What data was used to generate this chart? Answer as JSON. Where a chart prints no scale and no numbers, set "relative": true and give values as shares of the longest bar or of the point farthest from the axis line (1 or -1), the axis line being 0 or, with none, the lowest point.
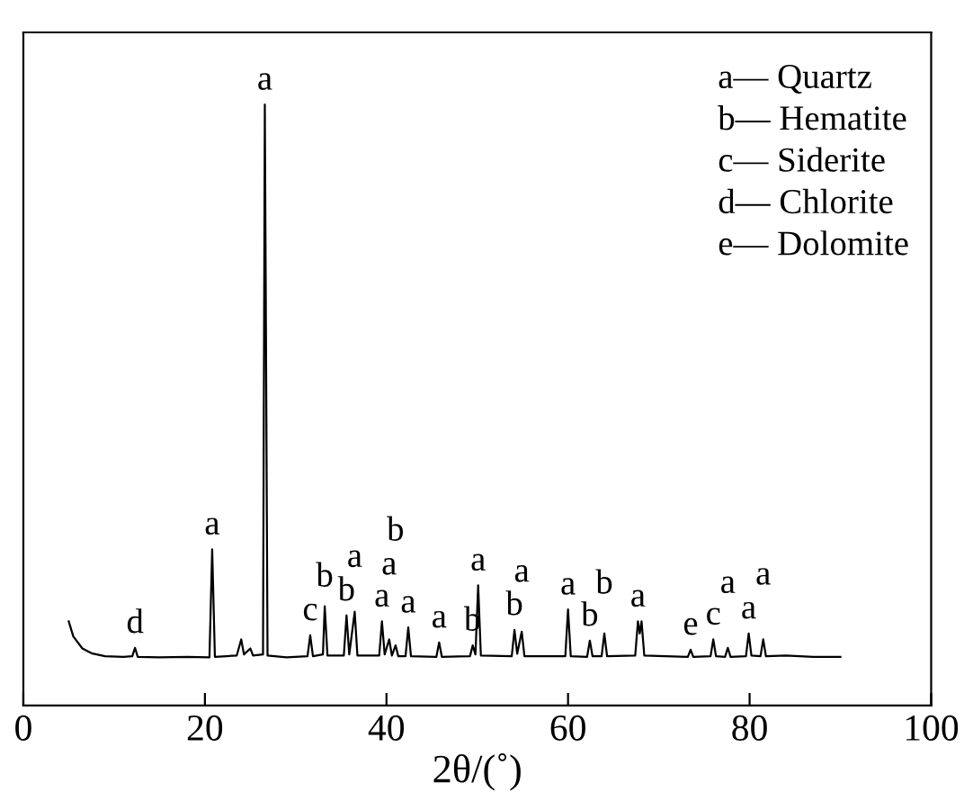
{
  "chart_data": {
    "type": "line",
    "relative": true,
    "xlabel": "2θ/(˚)",
    "xlim": [
      0,
      100
    ],
    "xticks": [
      0,
      20,
      40,
      60,
      80,
      100
    ],
    "grid": false,
    "legend": false,
    "marker": "none",
    "line_style": "solid",
    "series": [
      {
        "color": "#000000",
        "x": [
          5,
          5.5,
          6.5,
          7.5,
          9,
          11,
          12,
          12.3,
          12.6,
          15,
          18,
          20.5,
          20.8,
          21.1,
          23.5,
          24,
          24.3,
          25,
          25.3,
          26.4,
          26.6,
          26.9,
          29,
          31.3,
          31.6,
          31.9,
          33.0,
          33.2,
          33.5,
          35.3,
          35.6,
          35.9,
          36.5,
          36.8,
          39.2,
          39.5,
          39.8,
          40.3,
          40.6,
          41.0,
          41.3,
          42.1,
          42.4,
          42.7,
          45.5,
          45.8,
          46.1,
          49.2,
          49.5,
          49.8,
          50.1,
          50.4,
          53.8,
          54.1,
          54.4,
          54.9,
          55.2,
          59.7,
          60.0,
          60.3,
          62.1,
          62.4,
          62.7,
          63.7,
          64.0,
          64.3,
          67.4,
          67.7,
          67.9,
          68.1,
          68.4,
          73.2,
          73.5,
          73.8,
          75.7,
          76.0,
          76.3,
          77.3,
          77.6,
          77.9,
          79.6,
          79.9,
          80.2,
          81.2,
          81.5,
          81.8,
          84,
          87,
          90
        ],
        "values": [
          0.14,
          0.115,
          0.095,
          0.087,
          0.082,
          0.081,
          0.082,
          0.096,
          0.081,
          0.08,
          0.081,
          0.08,
          0.26,
          0.081,
          0.083,
          0.11,
          0.085,
          0.095,
          0.083,
          0.085,
          1.0,
          0.083,
          0.08,
          0.082,
          0.117,
          0.082,
          0.085,
          0.165,
          0.083,
          0.083,
          0.15,
          0.085,
          0.156,
          0.083,
          0.083,
          0.14,
          0.085,
          0.11,
          0.083,
          0.1,
          0.082,
          0.082,
          0.13,
          0.082,
          0.081,
          0.105,
          0.081,
          0.082,
          0.1,
          0.085,
          0.2,
          0.083,
          0.082,
          0.126,
          0.086,
          0.123,
          0.082,
          0.082,
          0.16,
          0.082,
          0.081,
          0.108,
          0.082,
          0.082,
          0.12,
          0.082,
          0.083,
          0.14,
          0.12,
          0.14,
          0.083,
          0.081,
          0.093,
          0.081,
          0.082,
          0.11,
          0.082,
          0.081,
          0.096,
          0.081,
          0.082,
          0.12,
          0.083,
          0.082,
          0.11,
          0.082,
          0.083,
          0.081,
          0.081
        ]
      }
    ],
    "annotations": [
      "a— Quartz",
      "b— Hematite",
      "c— Siderite",
      "d— Chlorite",
      "e— Dolomite",
      {
        "text": "d",
        "x": 12.3,
        "y": 0.096
      },
      {
        "text": "a",
        "x": 20.8,
        "y": 0.26
      },
      {
        "text": "a",
        "x": 26.6,
        "y": 1.0
      },
      {
        "text": "c",
        "x": 31.6,
        "y": 0.117
      },
      {
        "text": "b",
        "x": 33.2,
        "y": 0.165
      },
      {
        "text": "b",
        "x": 35.6,
        "y": 0.15
      },
      {
        "text": "a",
        "x": 36.5,
        "y": 0.156
      },
      {
        "text": "a",
        "x": 39.5,
        "y": 0.14
      },
      {
        "text": "a",
        "x": 40.3,
        "y": 0.11
      },
      {
        "text": "b",
        "x": 41.0,
        "y": 0.1
      },
      {
        "text": "a",
        "x": 42.4,
        "y": 0.13
      },
      {
        "text": "a",
        "x": 45.8,
        "y": 0.105
      },
      {
        "text": "b",
        "x": 49.5,
        "y": 0.1
      },
      {
        "text": "a",
        "x": 50.1,
        "y": 0.2
      },
      {
        "text": "b",
        "x": 54.1,
        "y": 0.126
      },
      {
        "text": "a",
        "x": 54.9,
        "y": 0.123
      },
      {
        "text": "a",
        "x": 60.0,
        "y": 0.16
      },
      {
        "text": "b",
        "x": 62.4,
        "y": 0.108
      },
      {
        "text": "b",
        "x": 64.0,
        "y": 0.12
      },
      {
        "text": "a",
        "x": 67.7,
        "y": 0.14
      },
      {
        "text": "e",
        "x": 73.5,
        "y": 0.093
      },
      {
        "text": "c",
        "x": 76.0,
        "y": 0.11
      },
      {
        "text": "a",
        "x": 77.6,
        "y": 0.096
      },
      {
        "text": "a",
        "x": 79.9,
        "y": 0.12
      },
      {
        "text": "a",
        "x": 81.5,
        "y": 0.11
      }
    ]
  }
}
